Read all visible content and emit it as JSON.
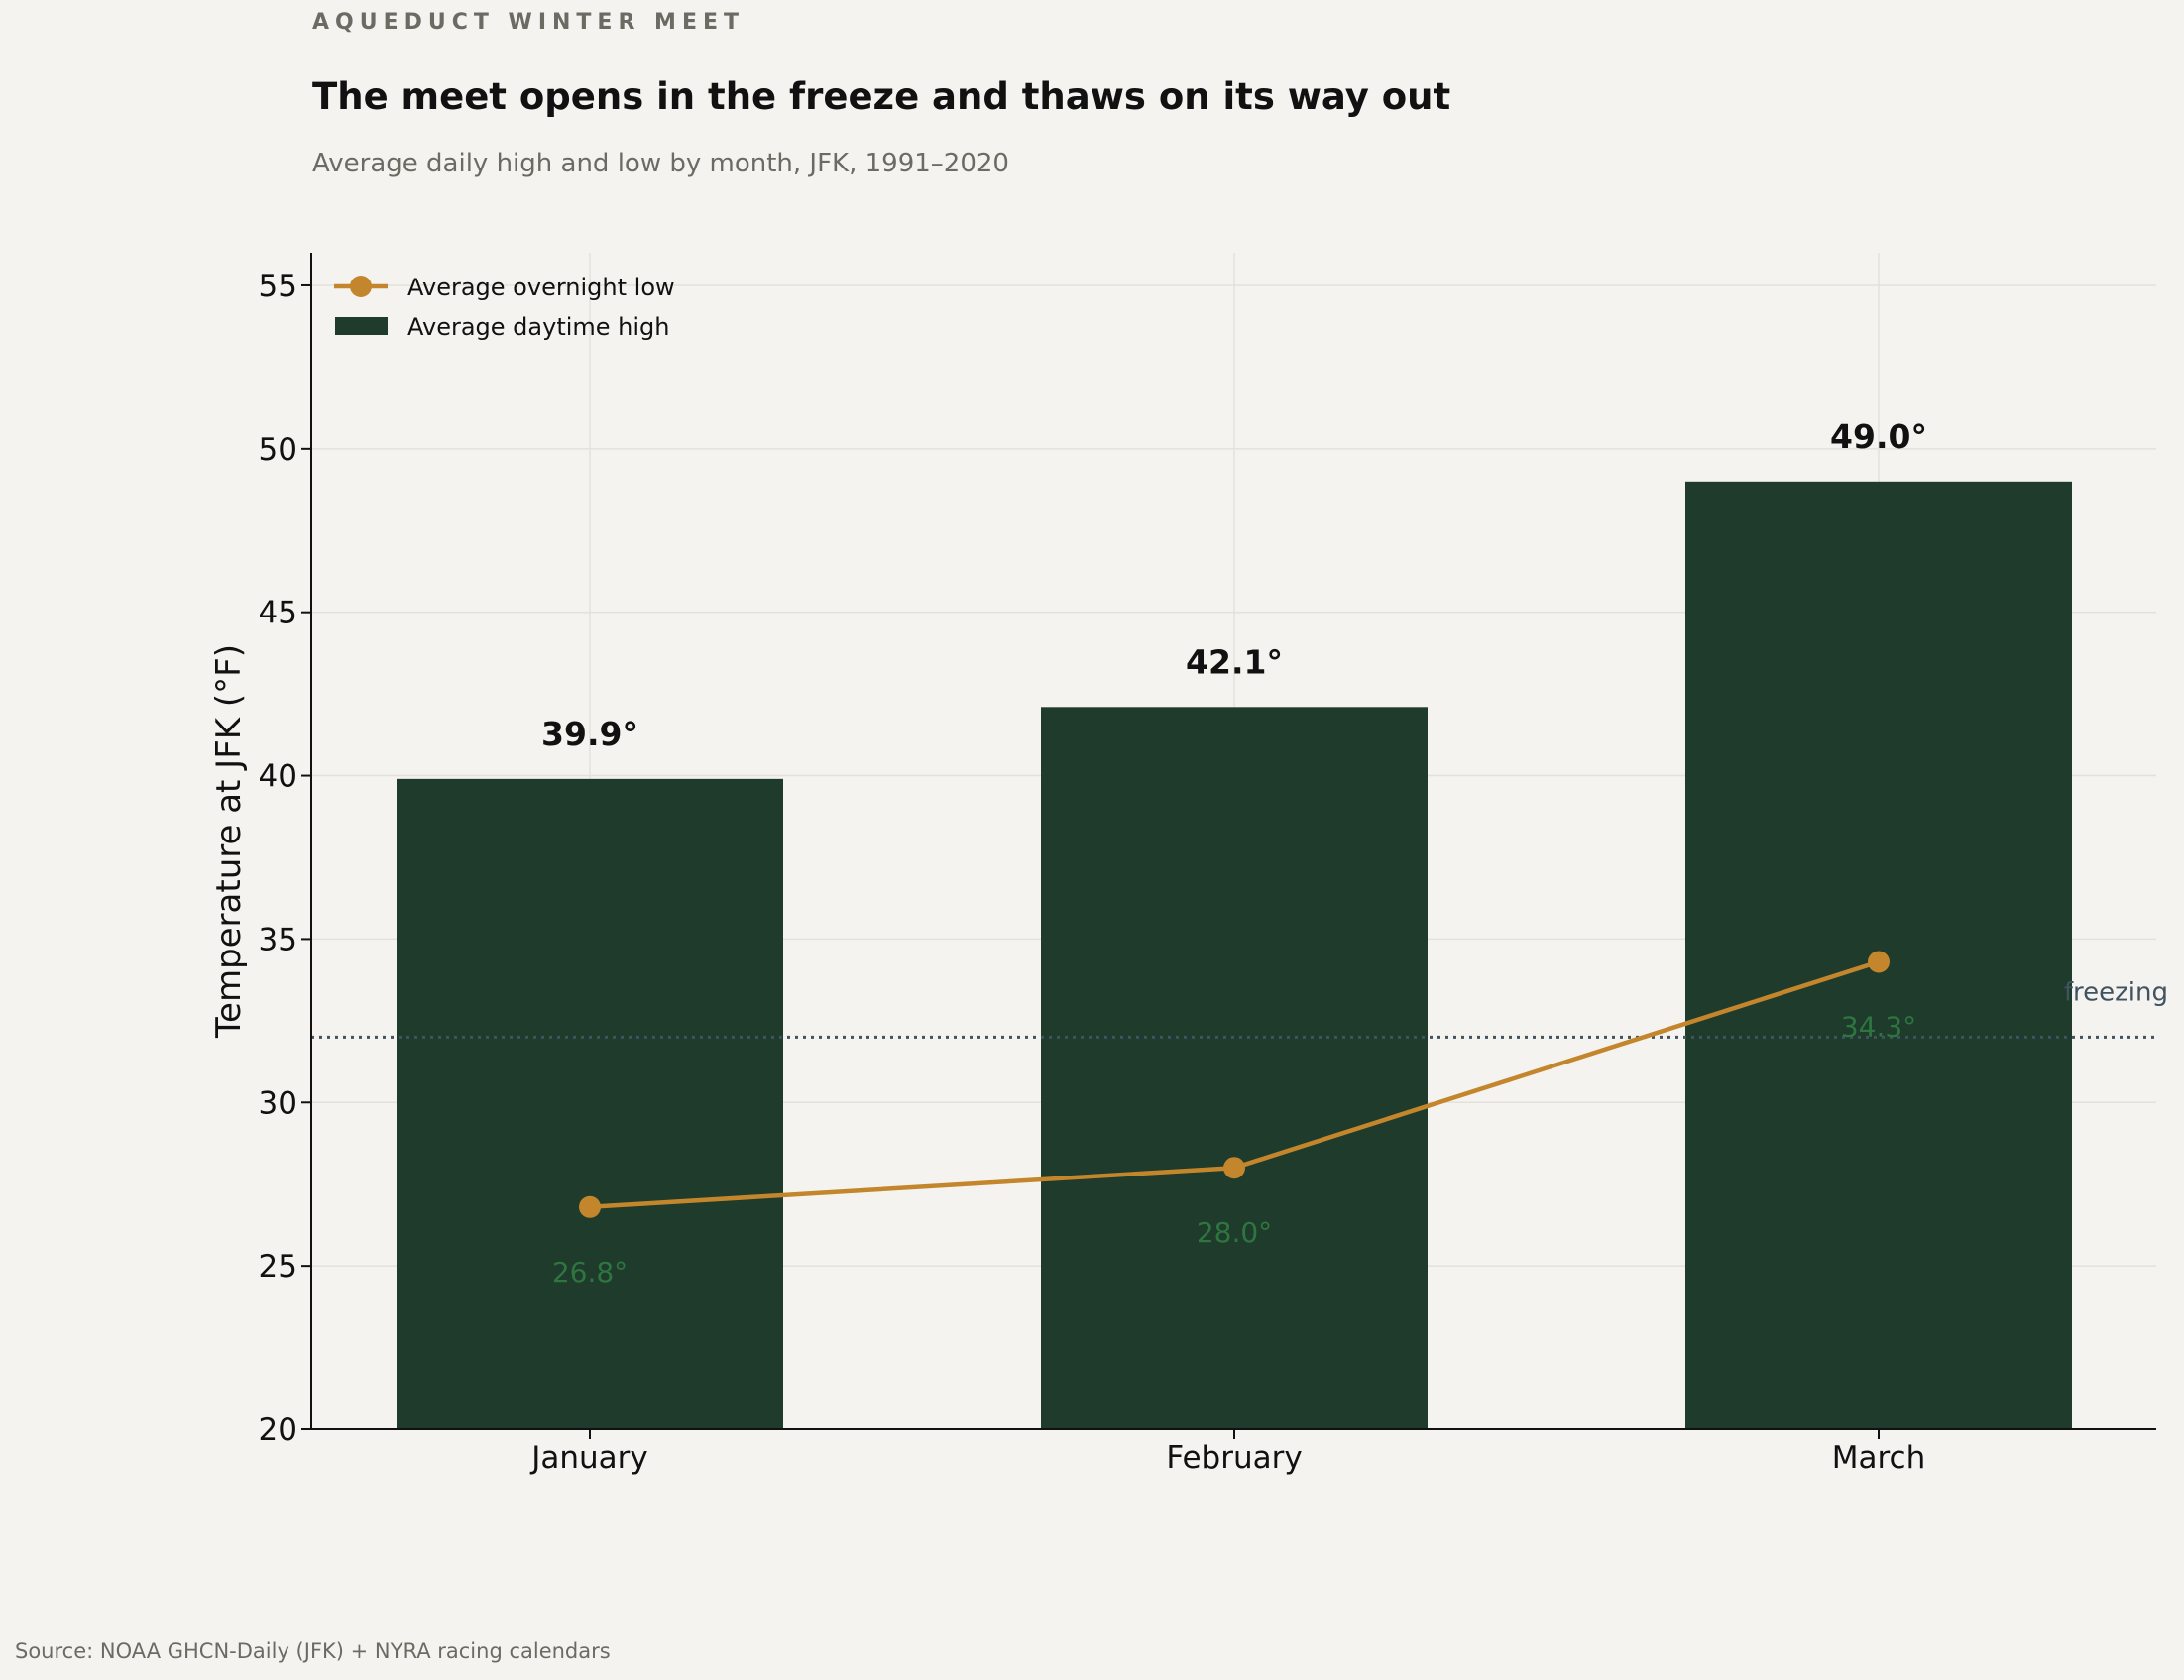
{
  "header": {
    "kicker": "AQUEDUCT WINTER MEET",
    "title": "The meet opens in the freeze and thaws on its way out",
    "subtitle": "Average daily high and low by month, JFK, 1991–2020"
  },
  "footer": {
    "source": "Source: NOAA GHCN-Daily (JFK) + NYRA racing calendars"
  },
  "chart_data": {
    "type": "bar",
    "title": "The meet opens in the freeze and thaws on its way out",
    "subtitle": "Average daily high and low by month, JFK, 1991–2020",
    "xlabel": "",
    "ylabel": "Temperature at JFK (°F)",
    "ylim": [
      20,
      56
    ],
    "yticks": [
      20,
      25,
      30,
      35,
      40,
      45,
      50,
      55
    ],
    "grid": true,
    "legend_position": "top-left",
    "categories": [
      "January",
      "February",
      "March"
    ],
    "series": [
      {
        "name": "Average daytime high",
        "type": "bar",
        "values": [
          39.9,
          42.1,
          49.0
        ],
        "labels": [
          "39.9°",
          "42.1°",
          "49.0°"
        ],
        "color": "#1e3b2b"
      },
      {
        "name": "Average overnight low",
        "type": "line",
        "values": [
          26.8,
          28.0,
          34.3
        ],
        "labels": [
          "26.8°",
          "28.0°",
          "34.3°"
        ],
        "color": "#c4862c",
        "label_color": "#2e7540"
      }
    ],
    "reference_line": {
      "value": 32,
      "label": "freezing",
      "color": "#3f5360",
      "style": "dotted"
    },
    "colors": {
      "background": "#f5f3ef",
      "grid": "#e3e1dc",
      "axis": "#111111"
    }
  }
}
